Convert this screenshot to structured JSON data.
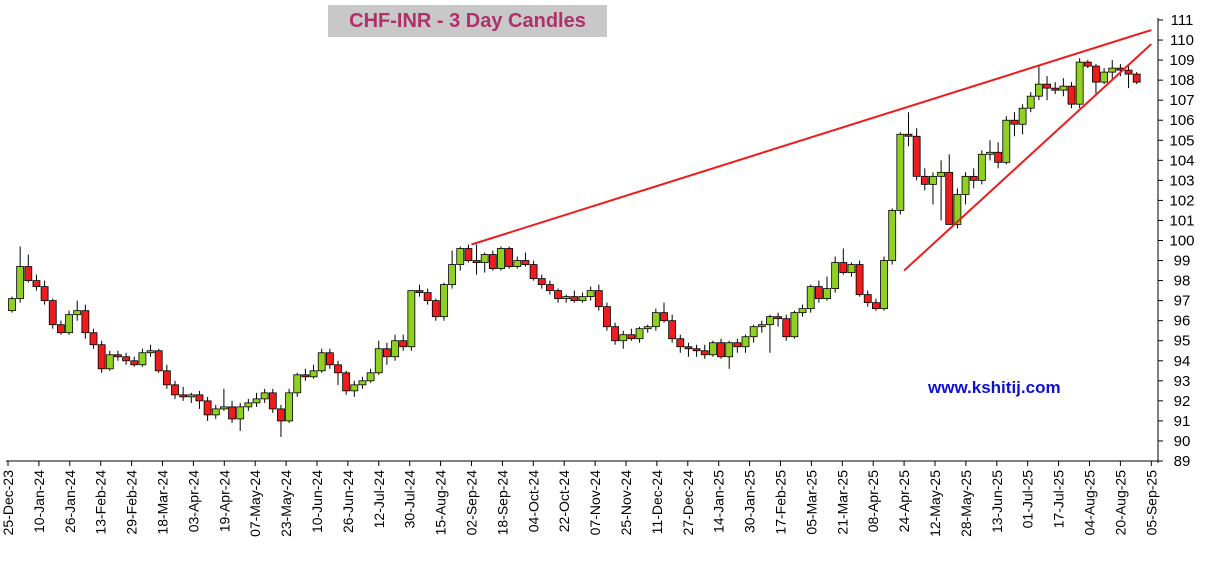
{
  "chart_data": {
    "type": "candlestick",
    "title": "CHF-INR  - 3 Day Candles",
    "watermark": "www.kshitij.com",
    "ylim": [
      89,
      111
    ],
    "y_ticks": [
      89,
      90,
      91,
      92,
      93,
      94,
      95,
      96,
      97,
      98,
      99,
      100,
      101,
      102,
      103,
      104,
      105,
      106,
      107,
      108,
      109,
      110,
      111
    ],
    "x_ticks": [
      "25-Dec-23",
      "10-Jan-24",
      "26-Jan-24",
      "13-Feb-24",
      "29-Feb-24",
      "18-Mar-24",
      "03-Apr-24",
      "19-Apr-24",
      "07-May-24",
      "23-May-24",
      "10-Jun-24",
      "26-Jun-24",
      "12-Jul-24",
      "30-Jul-24",
      "15-Aug-24",
      "02-Sep-24",
      "18-Sep-24",
      "04-Oct-24",
      "22-Oct-24",
      "07-Nov-24",
      "25-Nov-24",
      "11-Dec-24",
      "27-Dec-24",
      "14-Jan-25",
      "30-Jan-25",
      "17-Feb-25",
      "05-Mar-25",
      "21-Mar-25",
      "08-Apr-25",
      "24-Apr-25",
      "12-May-25",
      "28-May-25",
      "13-Jun-25",
      "01-Jul-25",
      "17-Jul-25",
      "04-Aug-25",
      "20-Aug-25",
      "05-Sep-25"
    ],
    "grid": false,
    "colors": {
      "up": "#8fd020",
      "down": "#ee1c1c",
      "trendline": "#ee1c1c",
      "title_bg": "#c8c8c8",
      "title_text": "#b0306a",
      "watermark": "#1010d0"
    },
    "candles": [
      [
        96.5,
        97.2,
        96.4,
        97.1
      ],
      [
        97.1,
        99.7,
        96.9,
        98.7
      ],
      [
        98.7,
        99.3,
        97.9,
        98.0
      ],
      [
        98.0,
        98.3,
        97.5,
        97.7
      ],
      [
        97.7,
        98.0,
        96.8,
        97.0
      ],
      [
        97.0,
        97.1,
        95.6,
        95.8
      ],
      [
        95.8,
        96.0,
        95.3,
        95.4
      ],
      [
        95.4,
        96.5,
        95.3,
        96.3
      ],
      [
        96.3,
        97.0,
        96.0,
        96.5
      ],
      [
        96.5,
        96.8,
        95.1,
        95.4
      ],
      [
        95.4,
        95.6,
        94.6,
        94.8
      ],
      [
        94.8,
        95.0,
        93.4,
        93.6
      ],
      [
        93.6,
        94.5,
        93.5,
        94.3
      ],
      [
        94.3,
        94.5,
        94.0,
        94.2
      ],
      [
        94.2,
        94.4,
        93.8,
        94.0
      ],
      [
        94.0,
        94.2,
        93.7,
        93.8
      ],
      [
        93.8,
        94.6,
        93.7,
        94.4
      ],
      [
        94.4,
        94.8,
        94.2,
        94.5
      ],
      [
        94.5,
        94.6,
        93.4,
        93.5
      ],
      [
        93.5,
        93.8,
        92.6,
        92.8
      ],
      [
        92.8,
        93.0,
        92.1,
        92.3
      ],
      [
        92.3,
        92.7,
        92.0,
        92.2
      ],
      [
        92.2,
        92.4,
        91.9,
        92.3
      ],
      [
        92.3,
        92.5,
        91.6,
        92.0
      ],
      [
        92.0,
        92.2,
        91.0,
        91.3
      ],
      [
        91.3,
        91.8,
        91.1,
        91.6
      ],
      [
        91.6,
        92.6,
        91.5,
        91.7
      ],
      [
        91.7,
        92.0,
        90.9,
        91.1
      ],
      [
        91.1,
        91.9,
        90.5,
        91.7
      ],
      [
        91.7,
        92.1,
        91.5,
        91.9
      ],
      [
        91.9,
        92.4,
        91.7,
        92.1
      ],
      [
        92.1,
        92.6,
        91.9,
        92.4
      ],
      [
        92.4,
        92.6,
        91.4,
        91.6
      ],
      [
        91.6,
        91.8,
        90.2,
        91.0
      ],
      [
        91.0,
        92.6,
        90.9,
        92.4
      ],
      [
        92.4,
        93.4,
        92.2,
        93.3
      ],
      [
        93.3,
        93.6,
        93.0,
        93.2
      ],
      [
        93.2,
        93.8,
        93.1,
        93.5
      ],
      [
        93.5,
        94.6,
        93.4,
        94.4
      ],
      [
        94.4,
        94.6,
        93.6,
        93.8
      ],
      [
        93.8,
        94.0,
        92.8,
        93.4
      ],
      [
        93.4,
        93.5,
        92.3,
        92.5
      ],
      [
        92.5,
        93.0,
        92.2,
        92.8
      ],
      [
        92.8,
        93.2,
        92.6,
        93.0
      ],
      [
        93.0,
        93.6,
        92.9,
        93.4
      ],
      [
        93.4,
        95.0,
        93.3,
        94.6
      ],
      [
        94.6,
        94.9,
        93.8,
        94.2
      ],
      [
        94.2,
        95.3,
        94.0,
        95.0
      ],
      [
        95.0,
        95.3,
        94.5,
        94.7
      ],
      [
        94.7,
        97.5,
        94.5,
        97.5
      ],
      [
        97.5,
        97.8,
        97.2,
        97.4
      ],
      [
        97.4,
        97.6,
        96.8,
        97.0
      ],
      [
        97.0,
        97.1,
        96.0,
        96.2
      ],
      [
        96.2,
        97.9,
        96.0,
        97.8
      ],
      [
        97.8,
        99.5,
        97.6,
        98.8
      ],
      [
        98.8,
        99.7,
        98.5,
        99.6
      ],
      [
        99.6,
        99.8,
        98.9,
        99.0
      ],
      [
        99.0,
        99.8,
        98.3,
        98.9
      ],
      [
        98.9,
        99.4,
        98.4,
        99.3
      ],
      [
        99.3,
        99.5,
        98.5,
        98.6
      ],
      [
        98.6,
        99.7,
        98.5,
        99.6
      ],
      [
        99.6,
        99.7,
        98.6,
        98.7
      ],
      [
        98.7,
        99.2,
        98.6,
        99.0
      ],
      [
        99.0,
        99.4,
        98.7,
        98.8
      ],
      [
        98.8,
        99.0,
        98.0,
        98.1
      ],
      [
        98.1,
        98.3,
        97.6,
        97.8
      ],
      [
        97.8,
        98.0,
        97.3,
        97.5
      ],
      [
        97.5,
        97.6,
        96.9,
        97.1
      ],
      [
        97.1,
        97.3,
        96.9,
        97.2
      ],
      [
        97.2,
        97.5,
        96.9,
        97.0
      ],
      [
        97.0,
        97.4,
        96.9,
        97.2
      ],
      [
        97.2,
        97.7,
        97.0,
        97.5
      ],
      [
        97.5,
        97.8,
        96.5,
        96.7
      ],
      [
        96.7,
        96.9,
        95.5,
        95.7
      ],
      [
        95.7,
        95.9,
        94.8,
        95.0
      ],
      [
        95.0,
        95.5,
        94.6,
        95.3
      ],
      [
        95.3,
        95.6,
        95.0,
        95.1
      ],
      [
        95.1,
        95.7,
        94.9,
        95.6
      ],
      [
        95.6,
        95.8,
        95.4,
        95.7
      ],
      [
        95.7,
        96.6,
        95.5,
        96.4
      ],
      [
        96.4,
        96.9,
        95.9,
        96.0
      ],
      [
        96.0,
        96.3,
        94.9,
        95.1
      ],
      [
        95.1,
        95.3,
        94.4,
        94.7
      ],
      [
        94.7,
        94.9,
        94.2,
        94.6
      ],
      [
        94.6,
        94.8,
        94.2,
        94.5
      ],
      [
        94.5,
        94.8,
        94.1,
        94.3
      ],
      [
        94.3,
        95.0,
        94.2,
        94.9
      ],
      [
        94.9,
        95.1,
        94.1,
        94.2
      ],
      [
        94.2,
        95.0,
        93.6,
        94.9
      ],
      [
        94.9,
        95.1,
        94.4,
        94.7
      ],
      [
        94.7,
        95.3,
        94.4,
        95.2
      ],
      [
        95.2,
        95.8,
        94.9,
        95.7
      ],
      [
        95.7,
        96.0,
        95.4,
        95.8
      ],
      [
        95.8,
        96.3,
        94.4,
        96.2
      ],
      [
        96.2,
        96.4,
        95.7,
        96.1
      ],
      [
        96.1,
        96.3,
        95.0,
        95.2
      ],
      [
        95.2,
        96.5,
        95.1,
        96.4
      ],
      [
        96.4,
        96.8,
        96.2,
        96.6
      ],
      [
        96.6,
        97.8,
        96.4,
        97.7
      ],
      [
        97.7,
        98.0,
        96.9,
        97.1
      ],
      [
        97.1,
        98.2,
        97.0,
        97.6
      ],
      [
        97.6,
        99.2,
        97.4,
        98.9
      ],
      [
        98.9,
        99.6,
        98.3,
        98.4
      ],
      [
        98.4,
        98.9,
        98.2,
        98.8
      ],
      [
        98.8,
        99.0,
        97.2,
        97.3
      ],
      [
        97.3,
        97.5,
        96.7,
        96.9
      ],
      [
        96.9,
        97.1,
        96.5,
        96.6
      ],
      [
        96.6,
        99.2,
        96.5,
        99.0
      ],
      [
        99.0,
        101.6,
        98.8,
        101.5
      ],
      [
        101.5,
        105.4,
        101.3,
        105.3
      ],
      [
        105.3,
        106.4,
        104.7,
        105.2
      ],
      [
        105.2,
        105.6,
        103.0,
        103.2
      ],
      [
        103.2,
        103.6,
        102.5,
        102.8
      ],
      [
        102.8,
        103.4,
        101.8,
        103.2
      ],
      [
        103.2,
        104.0,
        101.0,
        103.4
      ],
      [
        103.4,
        104.3,
        101.0,
        100.8
      ],
      [
        100.8,
        102.6,
        100.6,
        102.3
      ],
      [
        102.3,
        103.4,
        101.8,
        103.2
      ],
      [
        103.2,
        103.6,
        102.6,
        103.0
      ],
      [
        103.0,
        104.5,
        102.8,
        104.3
      ],
      [
        104.3,
        105.0,
        104.0,
        104.4
      ],
      [
        104.4,
        104.9,
        103.6,
        103.9
      ],
      [
        103.9,
        106.2,
        103.8,
        106.0
      ],
      [
        106.0,
        106.4,
        105.2,
        105.8
      ],
      [
        105.8,
        106.8,
        105.3,
        106.6
      ],
      [
        106.6,
        107.4,
        106.4,
        107.2
      ],
      [
        107.2,
        108.7,
        107.0,
        107.8
      ],
      [
        107.8,
        108.2,
        107.0,
        107.6
      ],
      [
        107.6,
        107.9,
        107.3,
        107.5
      ],
      [
        107.5,
        108.1,
        107.2,
        107.7
      ],
      [
        107.7,
        107.9,
        106.6,
        106.8
      ],
      [
        106.8,
        109.1,
        106.6,
        108.9
      ],
      [
        108.9,
        109.0,
        108.6,
        108.7
      ],
      [
        108.7,
        108.8,
        107.2,
        107.9
      ],
      [
        107.9,
        108.6,
        107.8,
        108.4
      ],
      [
        108.4,
        109.0,
        108.0,
        108.6
      ],
      [
        108.6,
        108.8,
        108.2,
        108.5
      ],
      [
        108.5,
        108.7,
        107.6,
        108.3
      ],
      [
        108.3,
        108.4,
        107.8,
        107.9
      ]
    ],
    "trendlines": [
      {
        "from": [
          "02-Sep-24",
          99.8
        ],
        "to": [
          "05-Sep-25",
          110.5
        ]
      },
      {
        "from": [
          "24-Apr-25",
          98.5
        ],
        "to": [
          "05-Sep-25",
          109.8
        ]
      }
    ]
  }
}
